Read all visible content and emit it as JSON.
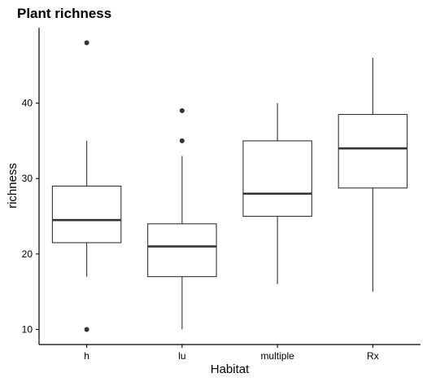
{
  "chart_data": {
    "type": "boxplot",
    "title": "Plant richness",
    "xlabel": "Habitat",
    "ylabel": "richness",
    "categories": [
      "h",
      "lu",
      "multiple",
      "Rx"
    ],
    "yticks": [
      10,
      20,
      30,
      40
    ],
    "ylim": [
      8,
      50
    ],
    "grid": false,
    "legend": "none",
    "colors": {
      "box_fill": "#ffffff",
      "box_stroke": "#333333",
      "median": "#333333",
      "outlier": "#333333",
      "axis": "#000000"
    },
    "series": [
      {
        "category": "h",
        "q1": 21.5,
        "median": 24.5,
        "q3": 29,
        "whisker_low": 17,
        "whisker_high": 35,
        "outliers": [
          48,
          10
        ]
      },
      {
        "category": "lu",
        "q1": 17,
        "median": 21,
        "q3": 24,
        "whisker_low": 10,
        "whisker_high": 33,
        "outliers": [
          39,
          35
        ]
      },
      {
        "category": "multiple",
        "q1": 25,
        "median": 28,
        "q3": 35,
        "whisker_low": 16,
        "whisker_high": 40,
        "outliers": []
      },
      {
        "category": "Rx",
        "q1": 28.75,
        "median": 34,
        "q3": 38.5,
        "whisker_low": 15,
        "whisker_high": 46,
        "outliers": []
      }
    ]
  }
}
